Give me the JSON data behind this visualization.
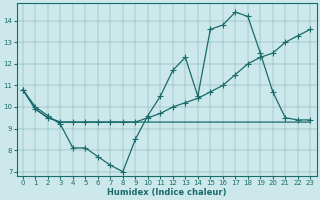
{
  "xlabel": "Humidex (Indice chaleur)",
  "bg_color": "#cce8eb",
  "line_color": "#1a6b6b",
  "xlim": [
    -0.5,
    23.5
  ],
  "ylim": [
    6.8,
    14.8
  ],
  "yticks": [
    7,
    8,
    9,
    10,
    11,
    12,
    13,
    14
  ],
  "xticks": [
    0,
    1,
    2,
    3,
    4,
    5,
    6,
    7,
    8,
    9,
    10,
    11,
    12,
    13,
    14,
    15,
    16,
    17,
    18,
    19,
    20,
    21,
    22,
    23
  ],
  "line1_x": [
    0,
    1,
    2,
    3,
    4,
    5,
    6,
    7,
    8,
    9,
    10,
    11,
    12,
    13,
    14,
    15,
    16,
    17,
    18,
    19,
    20,
    21,
    22,
    23
  ],
  "line1_y": [
    10.8,
    10.0,
    9.6,
    9.2,
    8.1,
    8.1,
    7.7,
    7.3,
    7.0,
    8.5,
    9.6,
    10.5,
    11.7,
    12.3,
    10.5,
    13.6,
    13.8,
    14.4,
    14.2,
    12.5,
    10.7,
    9.5,
    9.4,
    9.4
  ],
  "line2_x": [
    0,
    1,
    2,
    3,
    4,
    5,
    6,
    7,
    8,
    9,
    10,
    11,
    12,
    13,
    14,
    15,
    16,
    17,
    18,
    19,
    20,
    21,
    22,
    23
  ],
  "line2_y": [
    10.8,
    9.9,
    9.5,
    9.3,
    9.3,
    9.3,
    9.3,
    9.3,
    9.3,
    9.3,
    9.5,
    9.7,
    10.0,
    10.2,
    10.4,
    10.7,
    11.0,
    11.5,
    12.0,
    12.3,
    12.5,
    13.0,
    13.3,
    13.6
  ],
  "line3_x": [
    0,
    1,
    2,
    3,
    9,
    10,
    11,
    12,
    13,
    14,
    15,
    16,
    17,
    18,
    19,
    20,
    21,
    22,
    23
  ],
  "line3_y": [
    10.8,
    9.9,
    9.5,
    9.3,
    9.3,
    9.3,
    9.3,
    9.3,
    9.3,
    9.3,
    9.3,
    9.3,
    9.3,
    9.3,
    9.3,
    9.3,
    9.3,
    9.3,
    9.3
  ]
}
